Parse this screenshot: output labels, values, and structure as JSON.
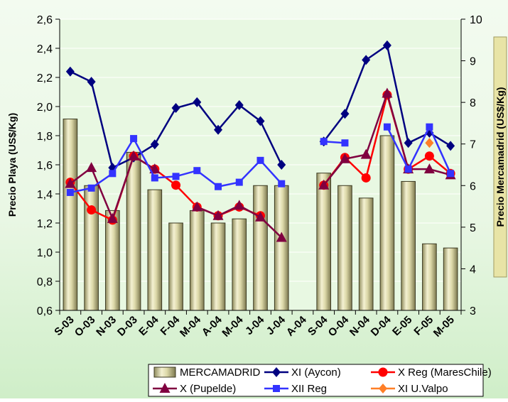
{
  "chart_data": {
    "type": "bar+line",
    "categories": [
      "S-03",
      "O-03",
      "N-03",
      "D-03",
      "E-04",
      "F-04",
      "M-04",
      "A-04",
      "M-04",
      "J-04",
      "J-04",
      "A-04",
      "S-04",
      "O-04",
      "N-04",
      "D-04",
      "E-05",
      "F-05",
      "M-05"
    ],
    "y_left": {
      "label": "Precio Playa (US$/Kg)",
      "min": 0.6,
      "max": 2.6,
      "step": 0.2,
      "ticks": [
        "0,6",
        "0,8",
        "1,0",
        "1,2",
        "1,4",
        "1,6",
        "1,8",
        "2,0",
        "2,2",
        "2,4",
        "2,6"
      ]
    },
    "y_right": {
      "label": "Precio Mercamadrid (US$/Kg)",
      "min": 3,
      "max": 10,
      "step": 1,
      "ticks": [
        "3",
        "4",
        "5",
        "6",
        "7",
        "8",
        "9",
        "10"
      ]
    },
    "bars": {
      "name": "MERCAMADRID",
      "axis": "right",
      "color": "#c8c49a",
      "values": [
        7.6,
        6.0,
        5.4,
        6.8,
        5.9,
        5.1,
        5.4,
        5.1,
        5.2,
        6.0,
        6.0,
        null,
        6.3,
        6.0,
        5.7,
        7.2,
        6.1,
        4.6,
        4.5
      ]
    },
    "series": [
      {
        "name": "XI (Aycon)",
        "axis": "left",
        "color": "#000080",
        "marker": "diamond",
        "values": [
          2.24,
          2.17,
          1.58,
          1.65,
          1.74,
          1.99,
          2.03,
          1.84,
          2.01,
          1.9,
          1.6,
          null,
          1.76,
          1.95,
          2.32,
          2.42,
          1.75,
          1.82,
          1.73
        ]
      },
      {
        "name": "X Reg (MaresChile)",
        "axis": "left",
        "color": "#ff0000",
        "marker": "circle",
        "values": [
          1.48,
          1.29,
          1.22,
          1.66,
          1.57,
          1.46,
          1.31,
          1.25,
          1.31,
          1.25,
          null,
          null,
          1.46,
          1.65,
          1.51,
          2.08,
          1.57,
          1.66,
          1.54
        ]
      },
      {
        "name": "X  (Pupelde)",
        "axis": "left",
        "color": "#800040",
        "marker": "triangle",
        "values": [
          1.47,
          1.58,
          1.23,
          1.66,
          1.57,
          null,
          1.31,
          1.25,
          1.32,
          1.24,
          1.1,
          null,
          1.46,
          1.64,
          1.67,
          2.09,
          1.57,
          1.57,
          1.53
        ]
      },
      {
        "name": "XII Reg",
        "axis": "left",
        "color": "#3333ff",
        "marker": "square",
        "values": [
          1.41,
          1.44,
          1.54,
          1.78,
          1.51,
          1.52,
          1.56,
          1.45,
          1.48,
          1.63,
          1.47,
          null,
          1.76,
          1.75,
          null,
          1.86,
          1.57,
          1.86,
          1.54
        ]
      },
      {
        "name": "XI U.Valpo",
        "axis": "left",
        "color": "#ff7f27",
        "marker": "diamond",
        "values": [
          null,
          null,
          null,
          null,
          null,
          null,
          null,
          null,
          null,
          null,
          null,
          null,
          null,
          null,
          null,
          null,
          null,
          1.75,
          null
        ]
      }
    ],
    "legend": {
      "position": "bottom",
      "rows": [
        [
          "MERCAMADRID",
          "XI (Aycon)",
          "X Reg (MaresChile)"
        ],
        [
          "X  (Pupelde)",
          "XII Reg",
          "XI U.Valpo"
        ]
      ]
    }
  }
}
